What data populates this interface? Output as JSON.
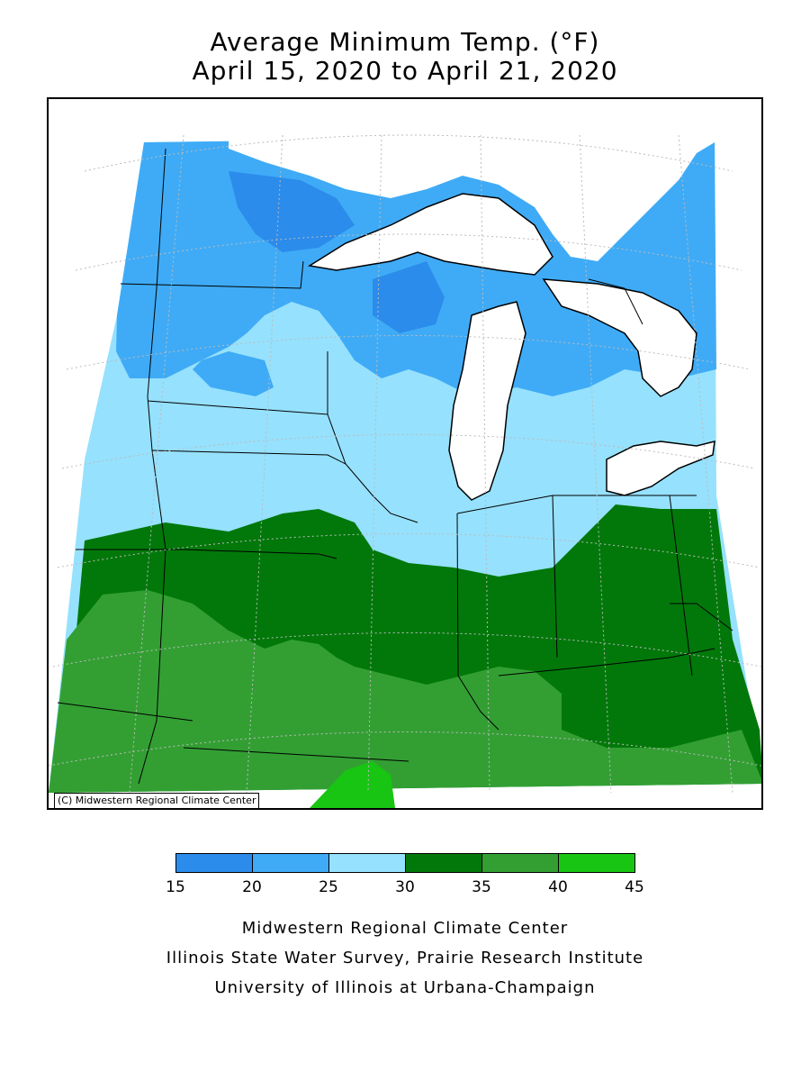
{
  "title": {
    "line1": "Average Minimum Temp. (°F)",
    "line2": "April 15, 2020 to April 21, 2020"
  },
  "map": {
    "region": "Midwest",
    "copyright": "(C) Midwestern Regional Climate Center",
    "colors": {
      "c15_20": "#2b8ceb",
      "c20_25": "#3fabf6",
      "c25_30": "#96e1fd",
      "c30_35": "#02780a",
      "c35_40": "#339f33",
      "c40_45": "#18c512",
      "water": "#ffffff",
      "border": "#000000",
      "grid": "#bbbbbb"
    }
  },
  "legend": {
    "bins": [
      {
        "min": 15,
        "max": 20,
        "color": "#2b8ceb"
      },
      {
        "min": 20,
        "max": 25,
        "color": "#3fabf6"
      },
      {
        "min": 25,
        "max": 30,
        "color": "#96e1fd"
      },
      {
        "min": 30,
        "max": 35,
        "color": "#02780a"
      },
      {
        "min": 35,
        "max": 40,
        "color": "#339f33"
      },
      {
        "min": 40,
        "max": 45,
        "color": "#18c512"
      }
    ],
    "ticks": [
      "15",
      "20",
      "25",
      "30",
      "35",
      "40",
      "45"
    ]
  },
  "credits": {
    "line1": "Midwestern Regional Climate Center",
    "line2": "Illinois State Water Survey, Prairie Research Institute",
    "line3": "University of Illinois at Urbana-Champaign"
  }
}
